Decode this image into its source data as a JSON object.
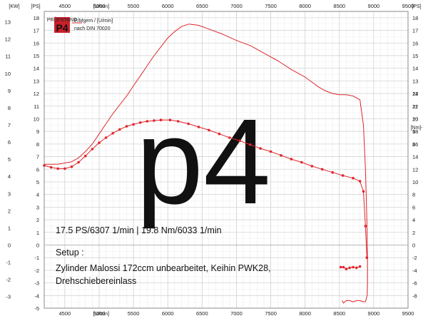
{
  "chart_data": {
    "type": "line",
    "x_unit": "[U/min]",
    "x_ticks": [
      "4500",
      "5000",
      "5500",
      "6000",
      "6500",
      "7000",
      "7500",
      "8000",
      "8500",
      "9000",
      "9500"
    ],
    "xlim": [
      4200,
      9500
    ],
    "left_kw_unit": "[KW]",
    "left_kw_ticks": [
      "13",
      "12",
      "11",
      "10",
      "9",
      "8",
      "7",
      "6",
      "5",
      "4",
      "3",
      "2",
      "1",
      "0",
      "-1",
      "-2",
      "-3"
    ],
    "left_ps_unit": "[PS]",
    "left_ps_ticks": [
      "18",
      "17",
      "16",
      "15",
      "14",
      "13",
      "12",
      "11",
      "10",
      "9",
      "8",
      "7",
      "6",
      "5",
      "4",
      "3",
      "2",
      "1",
      "0",
      "-1",
      "-2",
      "-3",
      "-4",
      "-5"
    ],
    "ps_lim": [
      -5,
      18.5
    ],
    "right_ps_unit": "[PS]",
    "right_ps_ticks": [
      "18",
      "17",
      "16",
      "15",
      "14",
      "13",
      "12",
      "11",
      "10",
      "9",
      "8"
    ],
    "right_nm_unit": "[Nm]-",
    "right_nm_ticks": [
      "24",
      "22",
      "20",
      "18",
      "16",
      "14",
      "12",
      "10",
      "8",
      "6",
      "4",
      "2",
      "0",
      "-2",
      "-4",
      "-6",
      "-8"
    ],
    "series": [
      {
        "label": "PS",
        "color": "#e0262b",
        "x": [
          4200,
          4400,
          4600,
          4700,
          4800,
          4900,
          5000,
          5100,
          5200,
          5300,
          5400,
          5500,
          5600,
          5700,
          5800,
          5900,
          6000,
          6100,
          6200,
          6307,
          6450,
          6600,
          6800,
          7000,
          7200,
          7400,
          7600,
          7800,
          8000,
          8100,
          8200,
          8300,
          8400,
          8500,
          8600,
          8700,
          8800,
          8850,
          8880,
          8900,
          8910,
          8910,
          8905,
          8880,
          8850,
          8800,
          8750,
          8700,
          8650,
          8600,
          8560,
          8540
        ],
        "y": [
          6.4,
          6.4,
          6.6,
          6.9,
          7.4,
          8.0,
          8.8,
          9.6,
          10.4,
          11.1,
          11.8,
          12.6,
          13.4,
          14.2,
          15.0,
          15.7,
          16.4,
          16.9,
          17.3,
          17.5,
          17.4,
          17.1,
          16.7,
          16.2,
          15.8,
          15.2,
          14.6,
          13.9,
          13.3,
          12.9,
          12.5,
          12.2,
          12.0,
          11.9,
          11.9,
          11.8,
          11.5,
          9.5,
          6.0,
          2.0,
          -1.0,
          -3.0,
          -4.0,
          -4.5,
          -4.5,
          -4.4,
          -4.4,
          -4.5,
          -4.4,
          -4.4,
          -4.6,
          -4.4
        ]
      },
      {
        "label": "Nm",
        "color": "#e0262b",
        "x": [
          4200,
          4300,
          4400,
          4500,
          4600,
          4700,
          4800,
          4900,
          5000,
          5100,
          5200,
          5300,
          5400,
          5500,
          5600,
          5700,
          5800,
          5900,
          6033,
          6150,
          6300,
          6450,
          6600,
          6750,
          6900,
          7050,
          7200,
          7350,
          7500,
          7650,
          7800,
          7950,
          8100,
          8250,
          8400,
          8550,
          8700,
          8800,
          8850,
          8880,
          8900
        ],
        "y": [
          12.6,
          12.3,
          12.1,
          12.1,
          12.4,
          13.1,
          14.1,
          15.2,
          16.2,
          17.0,
          17.7,
          18.3,
          18.8,
          19.1,
          19.4,
          19.6,
          19.7,
          19.8,
          19.8,
          19.6,
          19.2,
          18.7,
          18.2,
          17.6,
          17.0,
          16.5,
          15.9,
          15.3,
          14.8,
          14.2,
          13.6,
          13.1,
          12.5,
          12.0,
          11.5,
          11.0,
          10.6,
          10.1,
          8.5,
          3.0,
          -2.0
        ]
      },
      {
        "label": "Nm tail",
        "color": "#e0262b",
        "x": [
          8520,
          8560,
          8600,
          8650,
          8700,
          8750,
          8800
        ],
        "y": [
          -3.5,
          -3.5,
          -3.8,
          -3.6,
          -3.5,
          -3.6,
          -3.4
        ]
      }
    ],
    "annotations": {
      "peak": "17.5 PS/6307 1/min | 19.8 Nm/6033 1/min",
      "setup_title": "Setup :",
      "setup_line1": "Zylinder Malossi 172ccm unbearbeitet, Keihin PWK28,",
      "setup_line2": "Drehschiebereinlass"
    },
    "legend": {
      "badge_text": "P4",
      "badge_top": "PRÜFSTAND",
      "line1": "P/Mgem / [U/min]",
      "line2": "nach DIN 70020"
    },
    "watermark": "p4",
    "grid": true
  }
}
